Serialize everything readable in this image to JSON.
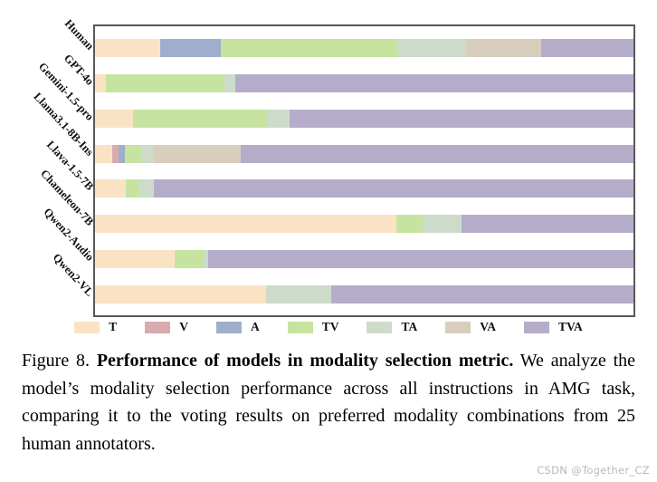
{
  "chart_data": {
    "type": "bar",
    "orientation": "horizontal",
    "stacked": true,
    "unit": "percent",
    "xlim": [
      0,
      100
    ],
    "grid": false,
    "axis_ticks": "none",
    "legend_position": "bottom",
    "categories": [
      "Human",
      "GPT-4o",
      "Gemini-1.5-pro",
      "Llama3.1-8B-Ins",
      "Llava-1.5-7B",
      "Chameleon-7B",
      "Qwen2-Audio",
      "Qwen2-VL"
    ],
    "series": [
      {
        "name": "T",
        "color": "#fae3c4",
        "values": [
          12.1,
          2.0,
          7.1,
          3.2,
          5.7,
          55.9,
          14.8,
          31.8
        ]
      },
      {
        "name": "V",
        "color": "#d9abaf",
        "values": [
          0,
          0,
          0,
          1.2,
          0,
          0,
          0,
          0
        ]
      },
      {
        "name": "A",
        "color": "#a0aecd",
        "values": [
          11.3,
          0,
          0,
          1.2,
          0,
          0,
          0,
          0
        ]
      },
      {
        "name": "TV",
        "color": "#c6e4a0",
        "values": [
          32.9,
          22.0,
          24.9,
          3.0,
          2.5,
          5.0,
          5.4,
          0
        ]
      },
      {
        "name": "TA",
        "color": "#cddcca",
        "values": [
          12.6,
          2.0,
          4.2,
          2.4,
          2.7,
          7.1,
          0.8,
          12.1
        ]
      },
      {
        "name": "VA",
        "color": "#d9cdbe",
        "values": [
          13.9,
          0,
          0,
          16.0,
          0,
          0,
          0,
          0
        ]
      },
      {
        "name": "TVA",
        "color": "#b5acca",
        "values": [
          17.2,
          74.0,
          63.8,
          73.0,
          89.1,
          32.0,
          79.0,
          56.1
        ]
      }
    ]
  },
  "caption": {
    "prefix": "Figure 8.",
    "bold": "Performance of models in modality selection metric.",
    "rest": "We analyze the model’s modality selection performance across all instructions in AMG task, comparing it to the voting results on preferred modality combinations from 25 human annotators."
  },
  "watermark": {
    "text": "CSDN @Together_CZ"
  },
  "frame_color": "#58585a"
}
